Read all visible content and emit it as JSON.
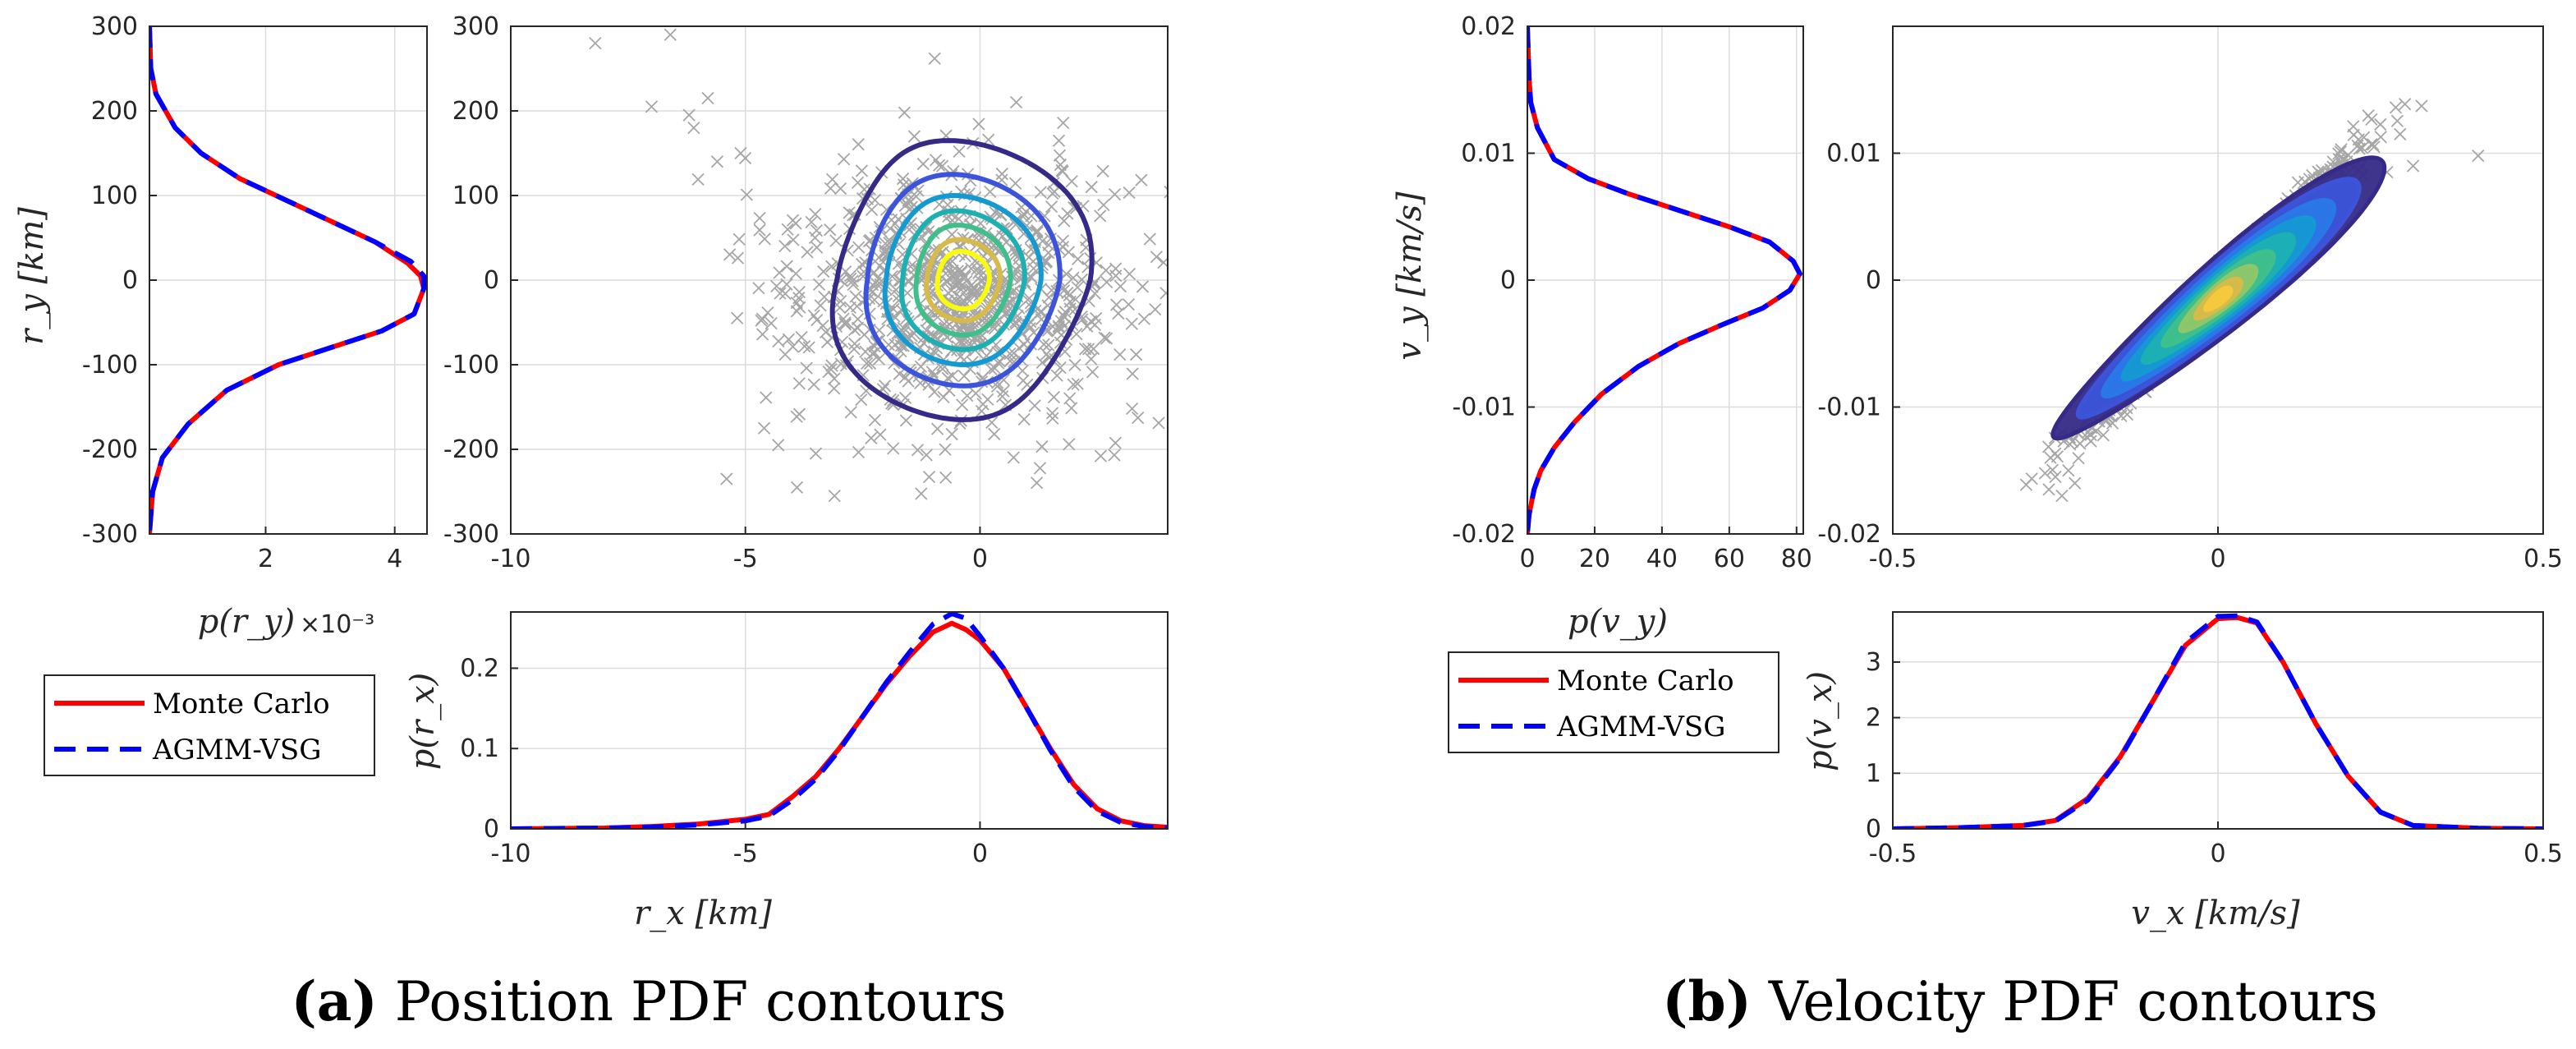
{
  "captions": {
    "a_label": "(a)",
    "a_text": " Position PDF contours",
    "b_label": "(b)",
    "b_text": " Velocity PDF contours"
  },
  "legend": {
    "entries": [
      "Monte Carlo",
      "AGMM-VSG"
    ]
  },
  "colors": {
    "monte_carlo": "#ff0000",
    "agmm": "#0000ff",
    "scatter": "#a6a6a6",
    "contours": [
      "#352a87",
      "#3b54d9",
      "#2a78e8",
      "#1599d3",
      "#1cb0b3",
      "#3fbf8b",
      "#8ec66a",
      "#d6bb4a",
      "#f5c93c",
      "#f9fb0e"
    ]
  },
  "chart_data": [
    {
      "id": "pos_ry_marginal",
      "type": "line",
      "title": "",
      "xlabel": "p(r_y)",
      "xlabel_exponent": "×10⁻³",
      "ylabel": "r_y [km]",
      "xlim": [
        0.2,
        4.5
      ],
      "ylim": [
        -300,
        300
      ],
      "xticks": [
        2,
        4
      ],
      "yticks": [
        -300,
        -200,
        -100,
        0,
        100,
        200,
        300
      ],
      "series": [
        {
          "name": "Monte Carlo",
          "x": [
            0.2,
            0.22,
            0.3,
            0.6,
            1.0,
            1.6,
            2.3,
            3.0,
            3.7,
            4.2,
            4.4,
            4.45,
            4.3,
            3.8,
            3.0,
            2.2,
            1.4,
            0.8,
            0.4,
            0.25,
            0.2
          ],
          "y": [
            300,
            250,
            220,
            180,
            150,
            120,
            95,
            70,
            45,
            20,
            5,
            -10,
            -40,
            -60,
            -80,
            -100,
            -130,
            -170,
            -210,
            -250,
            -300
          ]
        },
        {
          "name": "AGMM-VSG",
          "x": [
            0.2,
            0.22,
            0.3,
            0.6,
            1.0,
            1.6,
            2.3,
            3.0,
            3.7,
            4.25,
            4.45,
            4.45,
            4.3,
            3.8,
            3.0,
            2.2,
            1.4,
            0.8,
            0.4,
            0.25,
            0.2
          ],
          "y": [
            300,
            250,
            220,
            180,
            150,
            120,
            95,
            70,
            45,
            22,
            5,
            -10,
            -40,
            -60,
            -80,
            -100,
            -130,
            -170,
            -210,
            -250,
            -300
          ]
        }
      ]
    },
    {
      "id": "pos_contour",
      "type": "scatter",
      "title": "",
      "xlabel": "",
      "ylabel": "",
      "xlim": [
        -10,
        4
      ],
      "ylim": [
        -300,
        300
      ],
      "xticks": [
        -10,
        -5,
        0
      ],
      "yticks": [
        -300,
        -200,
        -100,
        0,
        100,
        200,
        300
      ],
      "scatter_center": [
        -0.5,
        -15
      ],
      "scatter_spread": [
        1.8,
        75
      ],
      "scatter_count": 850,
      "outliers": {
        "x": [
          -8.2,
          -7.0,
          -6.6,
          -6.2,
          -6.1,
          -5.8,
          -5.4,
          -5.1,
          -4.6,
          -4.3,
          -3.9,
          -3.5,
          -3.1,
          -5.6,
          -4.1,
          -3.4
        ],
        "y": [
          280,
          205,
          290,
          195,
          180,
          215,
          -235,
          150,
          -175,
          -195,
          -245,
          -205,
          -255,
          140,
          60,
          -30
        ]
      },
      "contours": {
        "center": [
          -0.35,
          0
        ],
        "rx": [
          2.7,
          2.05,
          1.65,
          1.3,
          1.0,
          0.78,
          0.55
        ],
        "ry": [
          165,
          125,
          100,
          82,
          65,
          48,
          34
        ]
      }
    },
    {
      "id": "pos_rx_marginal",
      "type": "line",
      "title": "",
      "xlabel": "r_x [km]",
      "ylabel": "p(r_x)",
      "xlim": [
        -10,
        4
      ],
      "ylim": [
        0,
        0.27
      ],
      "xticks": [
        -10,
        -5,
        0
      ],
      "yticks": [
        0,
        0.1,
        0.2
      ],
      "series": [
        {
          "name": "Monte Carlo",
          "x": [
            -10,
            -8,
            -7,
            -6,
            -5,
            -4.5,
            -4,
            -3.5,
            -3,
            -2.5,
            -2,
            -1.5,
            -1,
            -0.6,
            -0.3,
            0,
            0.5,
            1,
            1.5,
            2,
            2.5,
            3,
            3.5,
            4
          ],
          "y": [
            0,
            0.001,
            0.003,
            0.006,
            0.012,
            0.018,
            0.04,
            0.065,
            0.1,
            0.14,
            0.18,
            0.215,
            0.245,
            0.256,
            0.248,
            0.235,
            0.2,
            0.15,
            0.1,
            0.055,
            0.025,
            0.01,
            0.004,
            0.002
          ]
        },
        {
          "name": "AGMM-VSG",
          "x": [
            -10,
            -8,
            -7,
            -6,
            -5,
            -4.5,
            -4,
            -3.5,
            -3,
            -2.5,
            -2,
            -1.5,
            -1,
            -0.6,
            -0.3,
            0,
            0.5,
            1,
            1.5,
            2,
            2.5,
            3,
            3.5,
            4
          ],
          "y": [
            0,
            0.001,
            0.002,
            0.005,
            0.01,
            0.016,
            0.036,
            0.062,
            0.098,
            0.14,
            0.182,
            0.22,
            0.255,
            0.268,
            0.262,
            0.24,
            0.2,
            0.15,
            0.098,
            0.052,
            0.022,
            0.008,
            0.003,
            0.001
          ]
        }
      ]
    },
    {
      "id": "vel_vy_marginal",
      "type": "line",
      "title": "",
      "xlabel": "p(v_y)",
      "ylabel": "v_y [km/s]",
      "xlim": [
        0,
        82
      ],
      "ylim": [
        -0.02,
        0.02
      ],
      "xticks": [
        0,
        20,
        40,
        60,
        80
      ],
      "yticks": [
        -0.02,
        -0.01,
        0,
        0.01,
        0.02
      ],
      "series": [
        {
          "name": "Monte Carlo",
          "x": [
            0,
            0.5,
            1,
            3,
            8,
            18,
            30,
            45,
            60,
            72,
            79,
            81,
            78,
            70,
            58,
            45,
            33,
            22,
            14,
            8,
            4,
            2,
            0.5,
            0
          ],
          "y": [
            0.02,
            0.016,
            0.014,
            0.012,
            0.0095,
            0.008,
            0.0068,
            0.0055,
            0.0042,
            0.003,
            0.0015,
            0.0005,
            -0.0008,
            -0.0022,
            -0.0035,
            -0.005,
            -0.0068,
            -0.009,
            -0.0112,
            -0.0132,
            -0.015,
            -0.0165,
            -0.0185,
            -0.02
          ]
        },
        {
          "name": "AGMM-VSG",
          "x": [
            0,
            0.5,
            1,
            3,
            8,
            18,
            30,
            45,
            60,
            72,
            79,
            81,
            78,
            70,
            58,
            45,
            33,
            22,
            14,
            8,
            4,
            2,
            0.5,
            0
          ],
          "y": [
            0.02,
            0.016,
            0.014,
            0.012,
            0.0095,
            0.008,
            0.0068,
            0.0055,
            0.0042,
            0.003,
            0.0015,
            0.0005,
            -0.0008,
            -0.0022,
            -0.0035,
            -0.005,
            -0.0068,
            -0.009,
            -0.0112,
            -0.0132,
            -0.015,
            -0.0165,
            -0.0185,
            -0.02
          ]
        }
      ]
    },
    {
      "id": "vel_contour",
      "type": "scatter",
      "title": "",
      "xlabel": "",
      "ylabel": "",
      "xlim": [
        -0.5,
        0.5
      ],
      "ylim": [
        -0.02,
        0.02
      ],
      "xticks": [
        -0.5,
        0,
        0.5
      ],
      "yticks": [
        -0.02,
        -0.01,
        0,
        0.01
      ],
      "scatter_center": [
        0.0,
        -0.001
      ],
      "scatter_spread": [
        0.11,
        0.0058
      ],
      "scatter_correlation": 0.985,
      "scatter_count": 750,
      "outliers": {
        "x": [
          0.22,
          0.24,
          0.26,
          0.28,
          0.3,
          0.4,
          -0.26,
          -0.25,
          -0.24,
          -0.23,
          -0.22
        ],
        "y": [
          0.009,
          0.0105,
          0.0085,
          0.0115,
          0.009,
          0.0098,
          -0.0165,
          -0.0155,
          -0.017,
          -0.015,
          -0.016
        ]
      },
      "contours": {
        "center": [
          0.0,
          -0.0015
        ],
        "angle_deg": 40,
        "major": [
          0.33,
          0.28,
          0.23,
          0.19,
          0.15,
          0.11,
          0.075,
          0.045,
          0.025
        ],
        "minor": [
          0.032,
          0.028,
          0.024,
          0.02,
          0.017,
          0.014,
          0.011,
          0.008,
          0.005
        ]
      }
    },
    {
      "id": "vel_vx_marginal",
      "type": "line",
      "title": "",
      "xlabel": "v_x [km/s]",
      "ylabel": "p(v_x)",
      "xlim": [
        -0.5,
        0.5
      ],
      "ylim": [
        0,
        3.9
      ],
      "xticks": [
        -0.5,
        0,
        0.5
      ],
      "yticks": [
        0,
        1,
        2,
        3
      ],
      "series": [
        {
          "name": "Monte Carlo",
          "x": [
            -0.5,
            -0.4,
            -0.3,
            -0.25,
            -0.2,
            -0.15,
            -0.1,
            -0.05,
            0,
            0.03,
            0.06,
            0.1,
            0.15,
            0.2,
            0.25,
            0.3,
            0.4,
            0.5
          ],
          "y": [
            0,
            0.02,
            0.06,
            0.15,
            0.55,
            1.3,
            2.3,
            3.3,
            3.78,
            3.8,
            3.7,
            3.0,
            1.9,
            0.95,
            0.3,
            0.06,
            0.01,
            0
          ]
        },
        {
          "name": "AGMM-VSG",
          "x": [
            -0.5,
            -0.4,
            -0.3,
            -0.25,
            -0.2,
            -0.15,
            -0.1,
            -0.05,
            0,
            0.03,
            0.06,
            0.1,
            0.15,
            0.2,
            0.25,
            0.3,
            0.4,
            0.5
          ],
          "y": [
            0,
            0.02,
            0.06,
            0.14,
            0.52,
            1.28,
            2.3,
            3.35,
            3.82,
            3.83,
            3.72,
            3.0,
            1.9,
            0.95,
            0.3,
            0.06,
            0.01,
            0
          ]
        }
      ]
    }
  ]
}
